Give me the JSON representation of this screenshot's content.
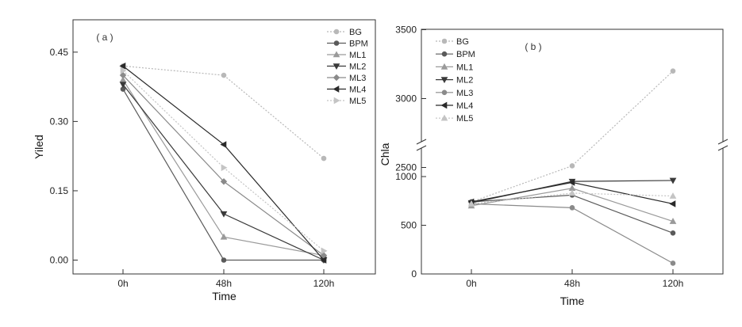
{
  "chart_data": [
    {
      "type": "line",
      "panel_label": "( a )",
      "xlabel": "Time",
      "ylabel": "Yiled",
      "categories": [
        "0h",
        "48h",
        "120h"
      ],
      "ylim": [
        -0.03,
        0.52
      ],
      "yticks": [
        0.0,
        0.15,
        0.3,
        0.45
      ],
      "ytick_labels": [
        "0.00",
        "0.15",
        "0.30",
        "0.45"
      ],
      "grid": false,
      "legend_position": "top-right",
      "series": [
        {
          "name": "BG",
          "values": [
            0.42,
            0.4,
            0.22
          ],
          "color": "#b8b8b8",
          "marker": "circle"
        },
        {
          "name": "BPM",
          "values": [
            0.37,
            0.0,
            0.0
          ],
          "color": "#5a5a5a",
          "marker": "circle"
        },
        {
          "name": "ML1",
          "values": [
            0.39,
            0.05,
            0.01
          ],
          "color": "#9a9a9a",
          "marker": "triangle-up"
        },
        {
          "name": "ML2",
          "values": [
            0.38,
            0.1,
            0.0
          ],
          "color": "#3a3a3a",
          "marker": "triangle-down"
        },
        {
          "name": "ML3",
          "values": [
            0.4,
            0.17,
            0.01
          ],
          "color": "#8a8a8a",
          "marker": "diamond"
        },
        {
          "name": "ML4",
          "values": [
            0.42,
            0.25,
            0.0
          ],
          "color": "#2a2a2a",
          "marker": "triangle-left"
        },
        {
          "name": "ML5",
          "values": [
            0.41,
            0.2,
            0.02
          ],
          "color": "#c4c4c4",
          "marker": "triangle-right"
        }
      ]
    },
    {
      "type": "line",
      "panel_label": "( b )",
      "xlabel": "Time",
      "ylabel": "Chla",
      "categories": [
        "0h",
        "48h",
        "120h"
      ],
      "y_axis_break": [
        1250,
        2250
      ],
      "ylim": [
        0,
        3500
      ],
      "yticks": [
        0,
        500,
        1000,
        2500,
        3000,
        3500
      ],
      "ytick_labels": [
        "0",
        "500",
        "1000",
        "2500",
        "3000",
        "3500"
      ],
      "grid": false,
      "legend_position": "top-left",
      "series": [
        {
          "name": "BG",
          "values": [
            740,
            1110,
            3200
          ],
          "color": "#b8b8b8",
          "marker": "circle"
        },
        {
          "name": "BPM",
          "values": [
            740,
            810,
            420
          ],
          "color": "#5a5a5a",
          "marker": "circle"
        },
        {
          "name": "ML1",
          "values": [
            700,
            880,
            540
          ],
          "color": "#9a9a9a",
          "marker": "triangle-up"
        },
        {
          "name": "ML2",
          "values": [
            730,
            950,
            960
          ],
          "color": "#3a3a3a",
          "marker": "triangle-down"
        },
        {
          "name": "ML3",
          "values": [
            720,
            680,
            110
          ],
          "color": "#8a8a8a",
          "marker": "circle"
        },
        {
          "name": "ML4",
          "values": [
            740,
            940,
            720
          ],
          "color": "#2a2a2a",
          "marker": "triangle-left"
        },
        {
          "name": "ML5",
          "values": [
            720,
            830,
            800
          ],
          "color": "#c4c4c4",
          "marker": "triangle-up"
        }
      ]
    }
  ]
}
